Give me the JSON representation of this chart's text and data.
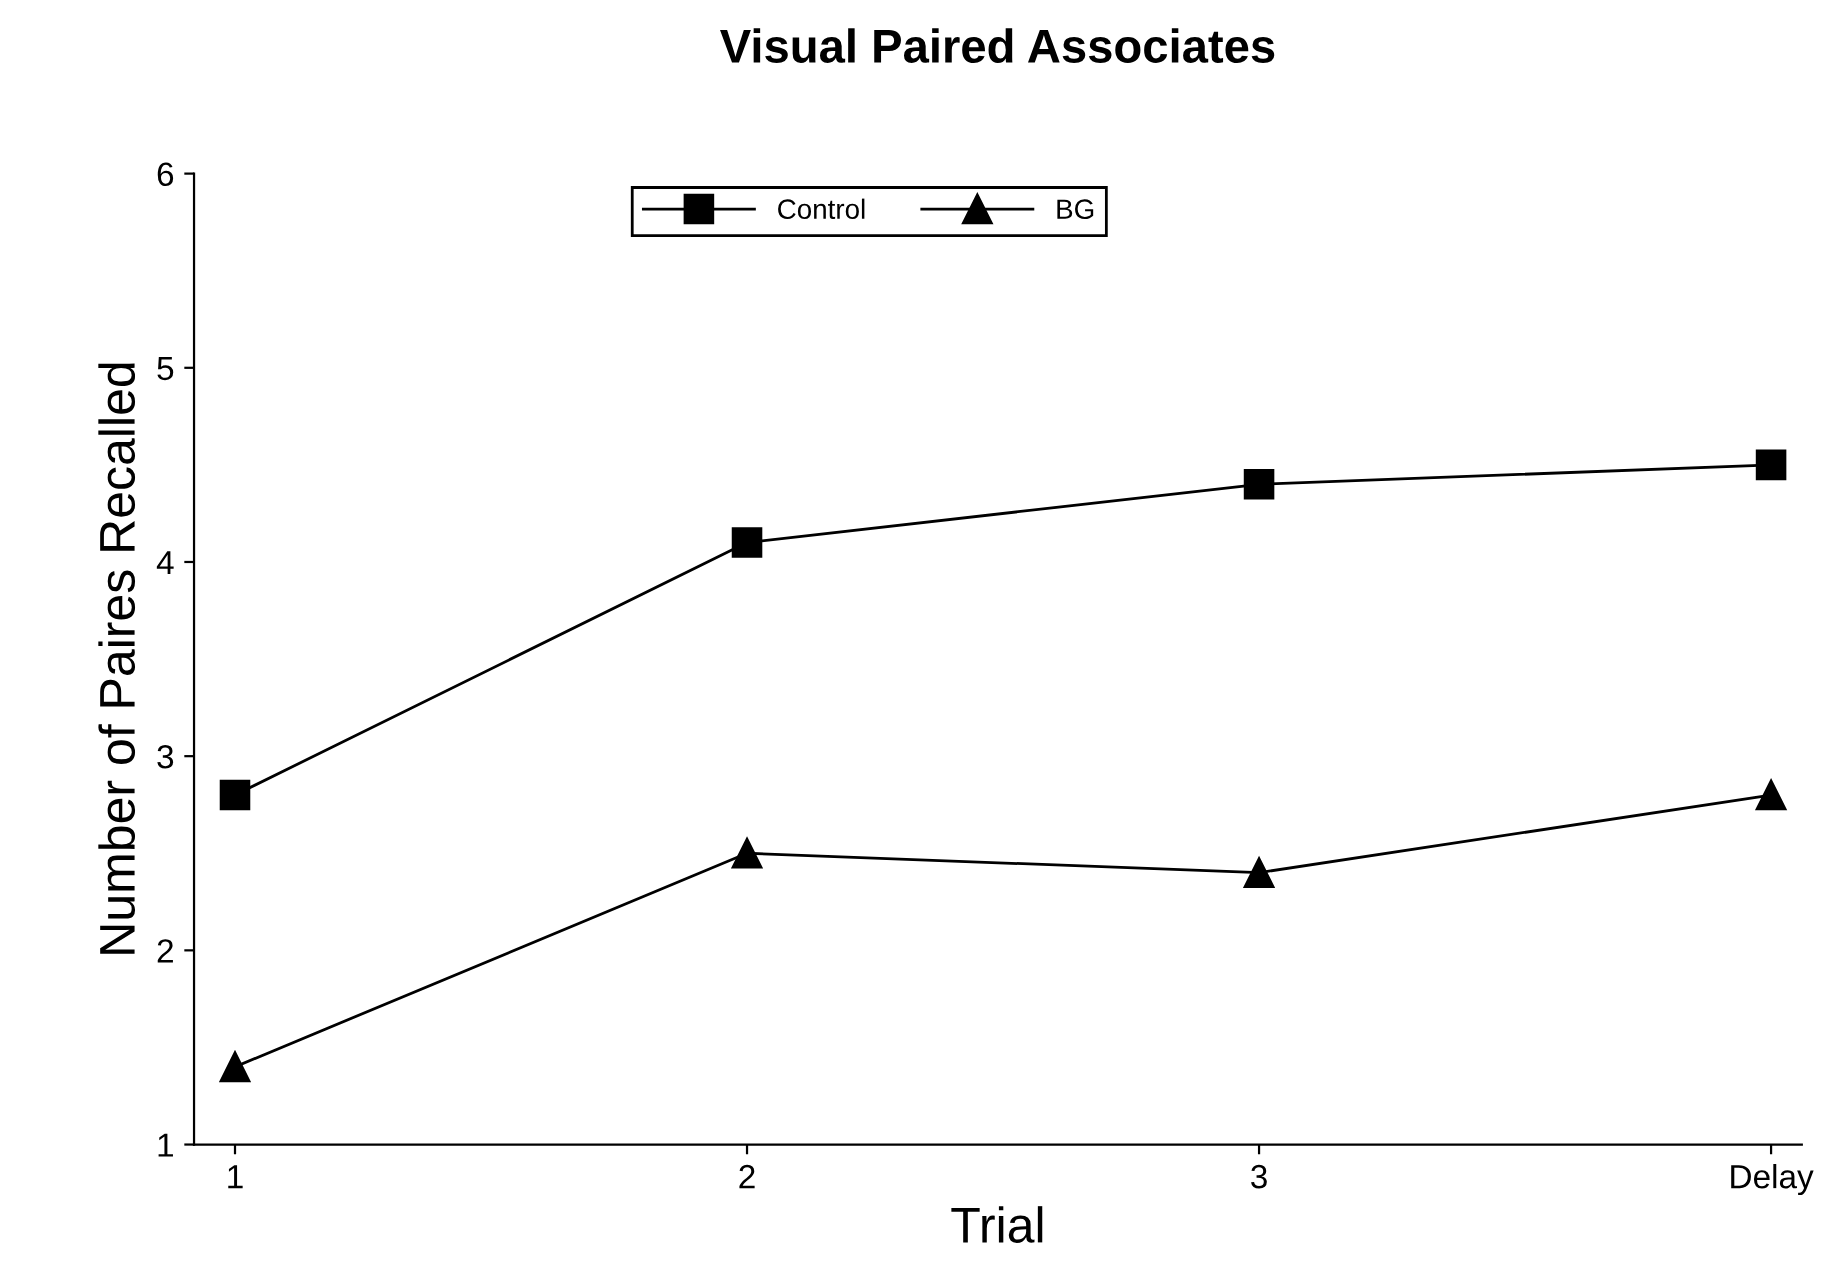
{
  "chart_data": {
    "type": "line",
    "title": "Visual Paired Associates",
    "xlabel": "Trial",
    "ylabel": "Number of Paires Recalled",
    "categories": [
      "1",
      "2",
      "3",
      "Delay"
    ],
    "series": [
      {
        "name": "Control",
        "color": "#000000",
        "marker": "square",
        "values": [
          2.8,
          4.1,
          4.4,
          4.5
        ]
      },
      {
        "name": "BG",
        "color": "#000000",
        "marker": "triangle",
        "values": [
          1.4,
          2.5,
          2.4,
          2.8
        ]
      }
    ],
    "ylim": [
      1,
      6
    ],
    "yticks": [
      1,
      2,
      3,
      4,
      5,
      6
    ],
    "grid": false,
    "legend": "top",
    "line_style": "solid"
  }
}
